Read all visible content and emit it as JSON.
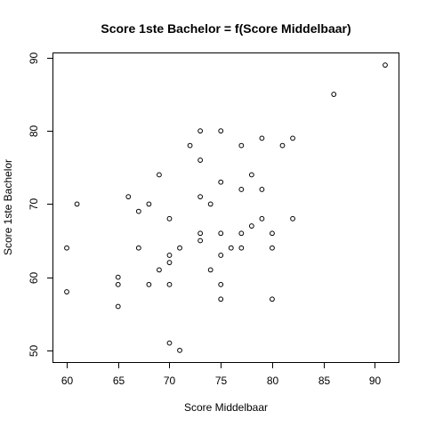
{
  "chart_data": {
    "type": "scatter",
    "title": "Score 1ste Bachelor = f(Score Middelbaar)",
    "xlabel": "Score Middelbaar",
    "ylabel": "Score 1ste Bachelor",
    "xlim": [
      58.7,
      92.3
    ],
    "ylim": [
      48.4,
      90.6
    ],
    "xticks": [
      60,
      65,
      70,
      75,
      80,
      85,
      90
    ],
    "yticks": [
      50,
      60,
      70,
      80,
      90
    ],
    "grid": false,
    "marker": "open-circle",
    "points": [
      [
        60,
        64
      ],
      [
        60,
        58
      ],
      [
        61,
        70
      ],
      [
        65,
        60
      ],
      [
        65,
        59
      ],
      [
        65,
        56
      ],
      [
        66,
        71
      ],
      [
        67,
        69
      ],
      [
        67,
        64
      ],
      [
        68,
        70
      ],
      [
        68,
        59
      ],
      [
        69,
        74
      ],
      [
        69,
        61
      ],
      [
        70,
        68
      ],
      [
        70,
        63
      ],
      [
        70,
        62
      ],
      [
        70,
        59
      ],
      [
        70,
        51
      ],
      [
        71,
        64
      ],
      [
        71,
        50
      ],
      [
        72,
        78
      ],
      [
        73,
        80
      ],
      [
        73,
        76
      ],
      [
        73,
        71
      ],
      [
        73,
        66
      ],
      [
        73,
        65
      ],
      [
        74,
        70
      ],
      [
        74,
        61
      ],
      [
        75,
        80
      ],
      [
        75,
        73
      ],
      [
        75,
        66
      ],
      [
        75,
        63
      ],
      [
        75,
        59
      ],
      [
        75,
        57
      ],
      [
        76,
        64
      ],
      [
        77,
        78
      ],
      [
        77,
        72
      ],
      [
        77,
        66
      ],
      [
        77,
        64
      ],
      [
        78,
        74
      ],
      [
        78,
        67
      ],
      [
        79,
        79
      ],
      [
        79,
        72
      ],
      [
        79,
        68
      ],
      [
        80,
        66
      ],
      [
        80,
        64
      ],
      [
        80,
        57
      ],
      [
        81,
        78
      ],
      [
        82,
        79
      ],
      [
        82,
        68
      ],
      [
        86,
        85
      ],
      [
        91,
        89
      ]
    ]
  }
}
